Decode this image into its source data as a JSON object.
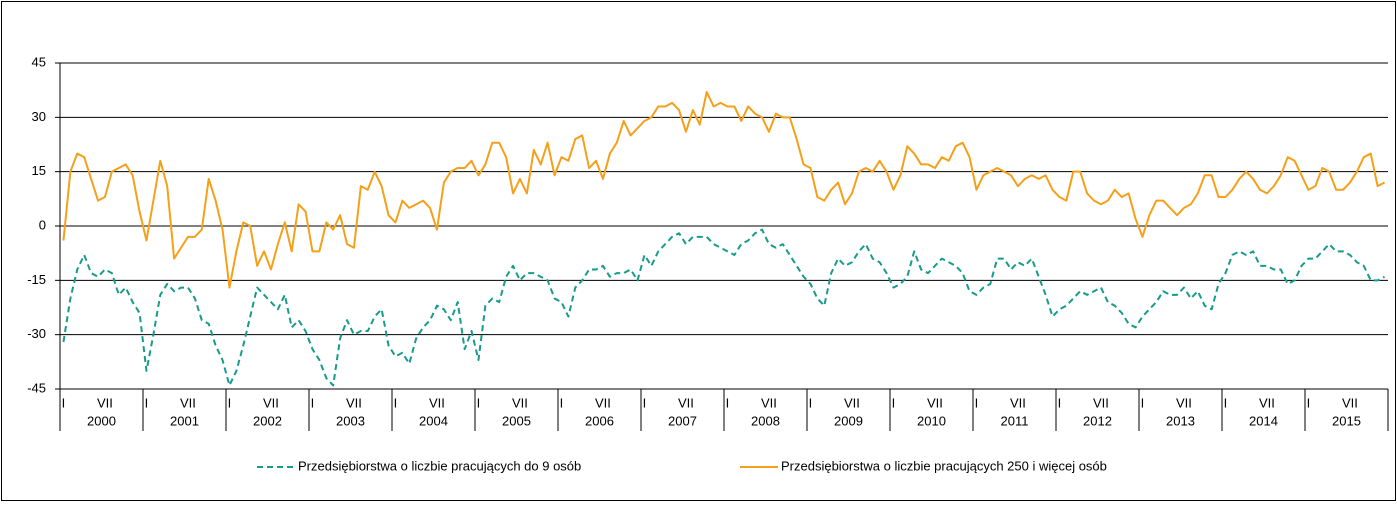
{
  "chart_data": {
    "type": "line",
    "categories": [
      "I",
      null,
      null,
      null,
      null,
      null,
      "VII",
      null,
      null,
      null,
      null,
      null,
      "I",
      null,
      null,
      null,
      null,
      null,
      "VII",
      null,
      null,
      null,
      null,
      null,
      "I",
      null,
      null,
      null,
      null,
      null,
      "VII",
      null,
      null,
      null,
      null,
      null,
      "I",
      null,
      null,
      null,
      null,
      null,
      "VII",
      null,
      null,
      null,
      null,
      null,
      "I",
      null,
      null,
      null,
      null,
      null,
      "VII",
      null,
      null,
      null,
      null,
      null,
      "I",
      null,
      null,
      null,
      null,
      null,
      "VII",
      null,
      null,
      null,
      null,
      null,
      "I",
      null,
      null,
      null,
      null,
      null,
      "VII",
      null,
      null,
      null,
      null,
      null,
      "I",
      null,
      null,
      null,
      null,
      null,
      "VII",
      null,
      null,
      null,
      null,
      null,
      "I",
      null,
      null,
      null,
      null,
      null,
      "VII",
      null,
      null,
      null,
      null,
      null,
      "I",
      null,
      null,
      null,
      null,
      null,
      "VII",
      null,
      null,
      null,
      null,
      null,
      "I",
      null,
      null,
      null,
      null,
      null,
      "VII",
      null,
      null,
      null,
      null,
      null,
      "I",
      null,
      null,
      null,
      null,
      null,
      "VII",
      null,
      null,
      null,
      null,
      null,
      "I",
      null,
      null,
      null,
      null,
      null,
      "VII",
      null,
      null,
      null,
      null,
      null,
      "I",
      null,
      null,
      null,
      null,
      null,
      "VII",
      null,
      null,
      null,
      null,
      null,
      "I",
      null,
      null,
      null,
      null,
      null,
      "VII",
      null,
      null,
      null,
      null,
      null,
      "I",
      null,
      null,
      null,
      null,
      null,
      "VII",
      null,
      null,
      null,
      null,
      null
    ],
    "years": [
      "2000",
      "2001",
      "2002",
      "2003",
      "2004",
      "2005",
      "2006",
      "2007",
      "2008",
      "2009",
      "2010",
      "2011",
      "2012",
      "2013",
      "2014",
      "2015"
    ],
    "series": [
      {
        "name": "Przedsiębiorstwa o liczbie pracujących do 9 osób",
        "color": "#169b8c",
        "dashed": true,
        "values": [
          -32,
          -20,
          -12,
          -8,
          -13,
          -14,
          -12,
          -13,
          -19,
          -17,
          -21,
          -24,
          -40,
          -30,
          -19,
          -16,
          -18,
          -17,
          -17,
          -20,
          -26,
          -27,
          -33,
          -37,
          -44,
          -40,
          -33,
          -25,
          -17,
          -19,
          -21,
          -23,
          -19,
          -28,
          -26,
          -29,
          -34,
          -37,
          -42,
          -44,
          -31,
          -26,
          -30,
          -29,
          -29,
          -25,
          -23,
          -33,
          -36,
          -35,
          -38,
          -31,
          -28,
          -26,
          -22,
          -23,
          -26,
          -21,
          -34,
          -29,
          -37,
          -22,
          -20,
          -21,
          -14,
          -11,
          -15,
          -13,
          -13,
          -14,
          -15,
          -20,
          -21,
          -25,
          -17,
          -15,
          -12,
          -12,
          -11,
          -14,
          -13,
          -13,
          -12,
          -15,
          -8,
          -11,
          -7,
          -5,
          -3,
          -2,
          -5,
          -3,
          -3,
          -3,
          -5,
          -6,
          -7,
          -8,
          -5,
          -4,
          -2,
          -1,
          -5,
          -6,
          -5,
          -8,
          -11,
          -14,
          -16,
          -20,
          -22,
          -13,
          -9,
          -11,
          -10,
          -7,
          -5,
          -9,
          -10,
          -13,
          -17,
          -16,
          -14,
          -7,
          -12,
          -13,
          -11,
          -9,
          -10,
          -11,
          -13,
          -18,
          -19,
          -17,
          -16,
          -9,
          -9,
          -12,
          -10,
          -11,
          -9,
          -14,
          -19,
          -25,
          -23,
          -22,
          -20,
          -18,
          -19,
          -18,
          -17,
          -21,
          -22,
          -24,
          -27,
          -28,
          -25,
          -23,
          -21,
          -18,
          -19,
          -19,
          -17,
          -20,
          -18,
          -22,
          -23,
          -16,
          -13,
          -8,
          -7,
          -8,
          -7,
          -11,
          -11,
          -12,
          -12,
          -16,
          -15,
          -11,
          -9,
          -9,
          -7,
          -5,
          -7,
          -7,
          -8,
          -10,
          -11,
          -15,
          -15,
          -14
        ]
      },
      {
        "name": "Przedsiębiorstwa o liczbie pracujących 250 i więcej osób",
        "color": "#f5a01a",
        "dashed": false,
        "values": [
          -4,
          15,
          20,
          19,
          13,
          7,
          8,
          15,
          16,
          17,
          14,
          4,
          -4,
          7,
          18,
          11,
          -9,
          -6,
          -3,
          -3,
          -1,
          13,
          7,
          -1,
          -17,
          -7,
          1,
          0,
          -11,
          -7,
          -12,
          -5,
          1,
          -7,
          6,
          4,
          -7,
          -7,
          1,
          -1,
          3,
          -5,
          -6,
          11,
          10,
          15,
          11,
          3,
          1,
          7,
          5,
          6,
          7,
          5,
          -1,
          12,
          15,
          16,
          16,
          18,
          14,
          17,
          23,
          23,
          19,
          9,
          13,
          9,
          21,
          17,
          23,
          14,
          19,
          18,
          24,
          25,
          16,
          18,
          13,
          20,
          23,
          29,
          25,
          27,
          29,
          30,
          33,
          33,
          34,
          32,
          26,
          32,
          28,
          37,
          33,
          34,
          33,
          33,
          29,
          33,
          31,
          30,
          26,
          31,
          30,
          30,
          24,
          17,
          16,
          8,
          7,
          10,
          12,
          6,
          9,
          15,
          16,
          15,
          18,
          15,
          10,
          14,
          22,
          20,
          17,
          17,
          16,
          19,
          18,
          22,
          23,
          19,
          10,
          14,
          15,
          16,
          15,
          14,
          11,
          13,
          14,
          13,
          14,
          10,
          8,
          7,
          15,
          15,
          9,
          7,
          6,
          7,
          10,
          8,
          9,
          2,
          -3,
          3,
          7,
          7,
          5,
          3,
          5,
          6,
          9,
          14,
          14,
          8,
          8,
          10,
          13,
          15,
          13,
          10,
          9,
          11,
          14,
          19,
          18,
          14,
          10,
          11,
          16,
          15,
          10,
          10,
          12,
          15,
          19,
          20,
          11,
          12
        ]
      }
    ],
    "ylim": [
      -45,
      45
    ],
    "yticks": [
      -45,
      -30,
      -15,
      0,
      15,
      30,
      45
    ],
    "grid": true
  }
}
